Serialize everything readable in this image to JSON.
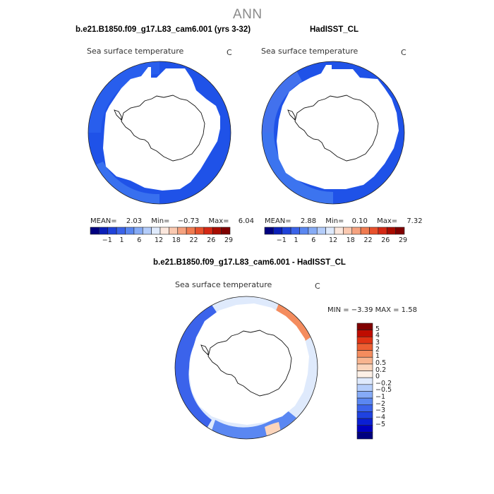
{
  "figure": {
    "title": "ANN"
  },
  "panels": [
    {
      "title": "b.e21.B1850.f09_g17.L83_cam6.001 (yrs 3-32)",
      "map_label": "Sea surface temperature",
      "units": "C",
      "stats": {
        "mean_label": "MEAN=",
        "mean": "2.03",
        "min_label": "Min=",
        "min": "−0.73",
        "max_label": "Max=",
        "max": "6.04"
      }
    },
    {
      "title": "HadISST_CL",
      "map_label": "Sea surface temperature",
      "units": "C",
      "stats": {
        "mean_label": "MEAN=",
        "mean": "2.88",
        "min_label": "Min=",
        "min": "0.10",
        "max_label": "Max=",
        "max": "7.32"
      }
    },
    {
      "title": "b.e21.B1850.f09_g17.L83_cam6.001 - HadISST_CL",
      "map_label": "Sea surface temperature",
      "units": "C",
      "stats": {
        "text": "MIN =   −3.39  MAX =    1.58"
      }
    }
  ],
  "colorbar_abs": {
    "colors": [
      "#00007f",
      "#0a1fb8",
      "#1f42d9",
      "#3b63e8",
      "#5a87f0",
      "#86abf5",
      "#b4cdfa",
      "#dfeafc",
      "#fbe7dd",
      "#fac9b0",
      "#f5a27f",
      "#f07b50",
      "#e8512c",
      "#d42814",
      "#a80c00",
      "#7f0000"
    ],
    "labels": [
      "−1",
      "1",
      "6",
      "12",
      "18",
      "22",
      "26",
      "29"
    ]
  },
  "colorbar_diff": {
    "colors": [
      "#00007f",
      "#0000bf",
      "#0a1fd4",
      "#1f42e0",
      "#3b63eb",
      "#5a87f2",
      "#86abf7",
      "#b4cdfb",
      "#dfeafd",
      "#fdf0e6",
      "#fbd5bc",
      "#f8b48f",
      "#f48c5e",
      "#ec5f33",
      "#e03314",
      "#bf0c00",
      "#800000"
    ],
    "labels": [
      "5",
      "4",
      "3",
      "2",
      "1",
      "0.5",
      "0.2",
      "0",
      "−0.2",
      "−0.5",
      "−1",
      "−2",
      "−3",
      "−4",
      "−5"
    ]
  }
}
